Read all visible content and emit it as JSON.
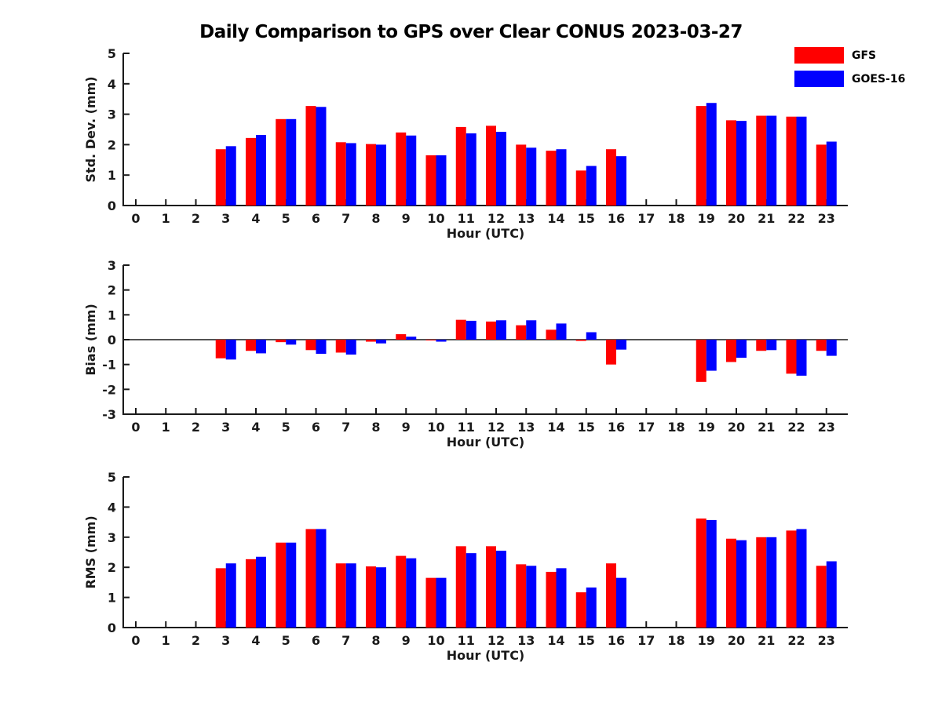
{
  "figure": {
    "title": "Daily Comparison to GPS over Clear CONUS 2023-03-27",
    "background": "#ffffff",
    "axis_color": "#1a1a1a"
  },
  "legend": {
    "position": "top-right",
    "items": [
      {
        "label": "GFS",
        "color": "#ff0000"
      },
      {
        "label": "GOES-16",
        "color": "#0000ff"
      }
    ]
  },
  "chart_data": [
    {
      "type": "bar",
      "panel": "std-dev",
      "title": "",
      "ylabel": "Std. Dev. (mm)",
      "xlabel": "Hour (UTC)",
      "ylim": [
        0,
        5
      ],
      "yticks": [
        0,
        1,
        2,
        3,
        4,
        5
      ],
      "grid": false,
      "zero_line": false,
      "categories": [
        0,
        1,
        2,
        3,
        4,
        5,
        6,
        7,
        8,
        9,
        10,
        11,
        12,
        13,
        14,
        15,
        16,
        17,
        18,
        19,
        20,
        21,
        22,
        23
      ],
      "series": [
        {
          "name": "GFS",
          "color": "#ff0000",
          "values": [
            null,
            null,
            null,
            1.85,
            2.22,
            2.84,
            3.27,
            2.08,
            2.02,
            2.4,
            1.65,
            2.58,
            2.62,
            2.0,
            1.8,
            1.15,
            1.85,
            null,
            null,
            3.27,
            2.8,
            2.95,
            2.92,
            2.0
          ]
        },
        {
          "name": "GOES-16",
          "color": "#0000ff",
          "values": [
            null,
            null,
            null,
            1.95,
            2.32,
            2.84,
            3.24,
            2.05,
            2.0,
            2.3,
            1.65,
            2.37,
            2.42,
            1.9,
            1.85,
            1.3,
            1.62,
            null,
            null,
            3.37,
            2.78,
            2.95,
            2.92,
            2.1
          ]
        }
      ]
    },
    {
      "type": "bar",
      "panel": "bias",
      "title": "",
      "ylabel": "Bias (mm)",
      "xlabel": "Hour (UTC)",
      "ylim": [
        -3,
        3
      ],
      "yticks": [
        -3,
        -2,
        -1,
        0,
        1,
        2,
        3
      ],
      "grid": false,
      "zero_line": true,
      "categories": [
        0,
        1,
        2,
        3,
        4,
        5,
        6,
        7,
        8,
        9,
        10,
        11,
        12,
        13,
        14,
        15,
        16,
        17,
        18,
        19,
        20,
        21,
        22,
        23
      ],
      "series": [
        {
          "name": "GFS",
          "color": "#ff0000",
          "values": [
            null,
            null,
            null,
            -0.75,
            -0.45,
            -0.1,
            -0.42,
            -0.52,
            -0.08,
            0.22,
            -0.03,
            0.8,
            0.73,
            0.58,
            0.4,
            -0.05,
            -1.0,
            null,
            null,
            -1.7,
            -0.9,
            -0.45,
            -1.37,
            -0.45
          ]
        },
        {
          "name": "GOES-16",
          "color": "#0000ff",
          "values": [
            null,
            null,
            null,
            -0.8,
            -0.55,
            -0.2,
            -0.57,
            -0.6,
            -0.15,
            0.12,
            -0.08,
            0.76,
            0.78,
            0.78,
            0.65,
            0.3,
            -0.4,
            null,
            null,
            -1.25,
            -0.73,
            -0.42,
            -1.45,
            -0.65
          ]
        }
      ]
    },
    {
      "type": "bar",
      "panel": "rms",
      "title": "",
      "ylabel": "RMS (mm)",
      "xlabel": "Hour (UTC)",
      "ylim": [
        0,
        5
      ],
      "yticks": [
        0,
        1,
        2,
        3,
        4,
        5
      ],
      "grid": false,
      "zero_line": false,
      "categories": [
        0,
        1,
        2,
        3,
        4,
        5,
        6,
        7,
        8,
        9,
        10,
        11,
        12,
        13,
        14,
        15,
        16,
        17,
        18,
        19,
        20,
        21,
        22,
        23
      ],
      "series": [
        {
          "name": "GFS",
          "color": "#ff0000",
          "values": [
            null,
            null,
            null,
            1.97,
            2.27,
            2.82,
            3.27,
            2.13,
            2.03,
            2.38,
            1.65,
            2.7,
            2.7,
            2.1,
            1.85,
            1.17,
            2.13,
            null,
            null,
            3.62,
            2.95,
            3.0,
            3.22,
            2.05
          ]
        },
        {
          "name": "GOES-16",
          "color": "#0000ff",
          "values": [
            null,
            null,
            null,
            2.13,
            2.35,
            2.82,
            3.27,
            2.13,
            2.0,
            2.3,
            1.65,
            2.47,
            2.55,
            2.05,
            1.97,
            1.33,
            1.65,
            null,
            null,
            3.57,
            2.9,
            3.0,
            3.27,
            2.2
          ]
        }
      ]
    }
  ]
}
